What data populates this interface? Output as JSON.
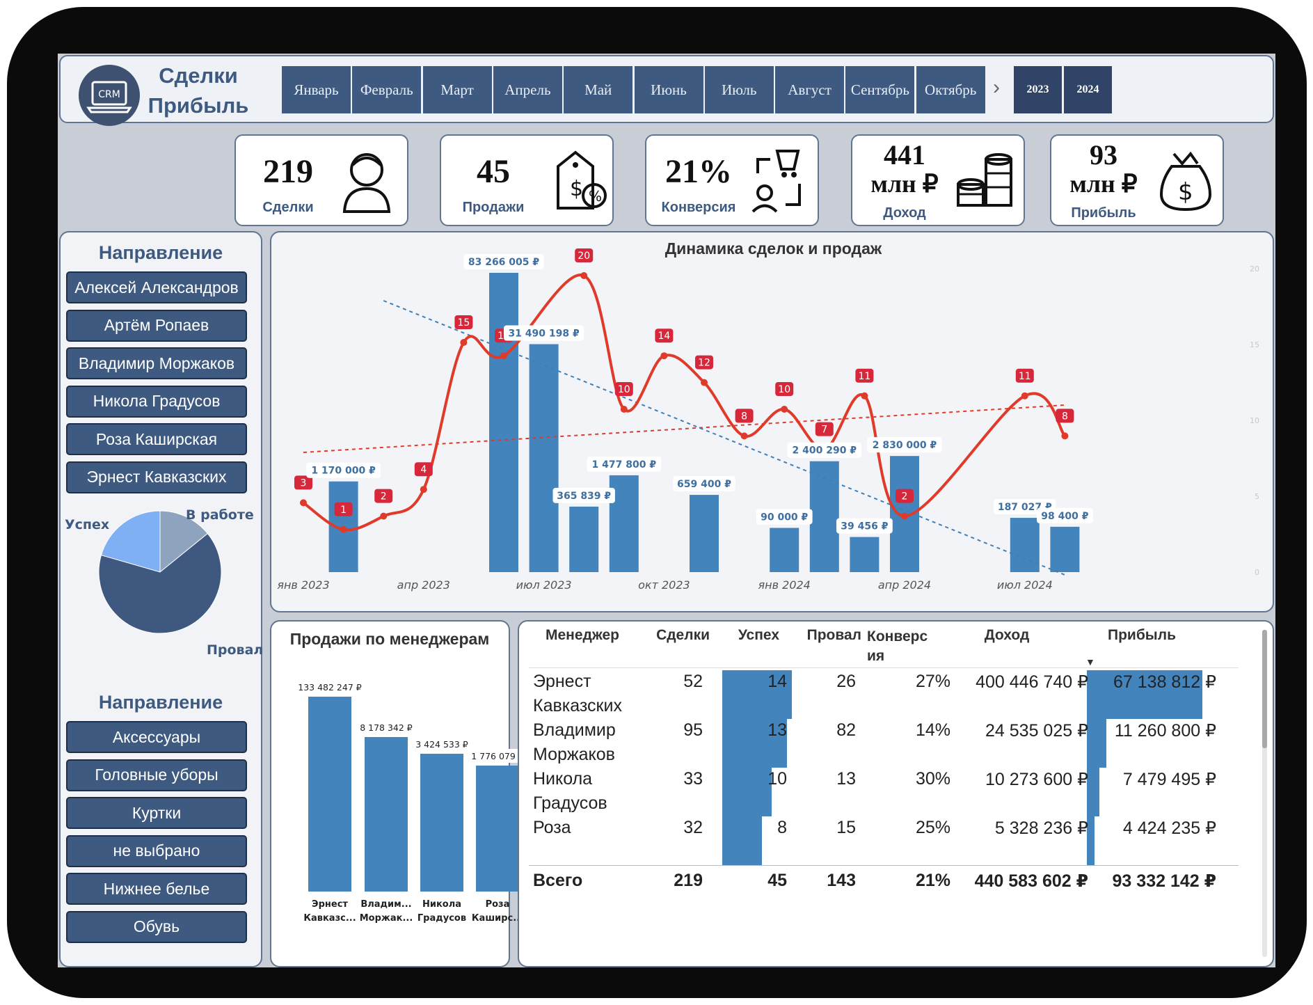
{
  "header": {
    "logo_text": "CRM",
    "title_line1": "Сделки",
    "title_line2": "Прибыль",
    "months": [
      "Январь",
      "Февраль",
      "Март",
      "Апрель",
      "Май",
      "Июнь",
      "Июль",
      "Август",
      "Сентябрь",
      "Октябрь"
    ],
    "next_glyph": "›",
    "years": [
      "2023",
      "2024"
    ]
  },
  "kpis": [
    {
      "value": "219",
      "unit": "",
      "label": "Сделки",
      "icon": "person-icon"
    },
    {
      "value": "45",
      "unit": "",
      "label": "Продажи",
      "icon": "price-tag-icon"
    },
    {
      "value": "21%",
      "unit": "",
      "label": "Конверсия",
      "icon": "cart-exchange-icon"
    },
    {
      "value": "441",
      "unit": "млн ₽",
      "label": "Доход",
      "icon": "coins-icon"
    },
    {
      "value": "93",
      "unit": "млн ₽",
      "label": "Прибыль",
      "icon": "money-bag-icon"
    }
  ],
  "sidebar": {
    "managers_title": "Направление",
    "managers": [
      "Алексей Александров",
      "Артём Ропаев",
      "Владимир Моржаков",
      "Никола Градусов",
      "Роза Каширская",
      "Эрнест Кавказских"
    ],
    "categories_title": "Направление",
    "categories": [
      "Аксессуары",
      "Головные уборы",
      "Куртки",
      "не выбрано",
      "Нижнее белье",
      "Обувь"
    ]
  },
  "pie": {
    "slices": [
      {
        "label": "Успех",
        "value": 45,
        "color": "#7fb0f4"
      },
      {
        "label": "В работе",
        "value": 31,
        "color": "#8ea3bd"
      },
      {
        "label": "Провал",
        "value": 143,
        "color": "#3f5880"
      }
    ]
  },
  "chart_data": [
    {
      "type": "bar",
      "title": "Динамика сделок и продаж",
      "x_tick_labels": [
        "янв 2023",
        "апр 2023",
        "июл 2023",
        "окт 2023",
        "янв 2024",
        "апр 2024",
        "июл 2024"
      ],
      "x": [
        "2023-01",
        "2023-02",
        "2023-03",
        "2023-04",
        "2023-05",
        "2023-06",
        "2023-07",
        "2023-08",
        "2023-09",
        "2023-10",
        "2023-11",
        "2023-12",
        "2024-01",
        "2024-02",
        "2024-03",
        "2024-04",
        "2024-05",
        "2024-06",
        "2024-07",
        "2024-08"
      ],
      "series": [
        {
          "kind": "bar",
          "values": [
            null,
            1170000,
            null,
            null,
            null,
            83266005,
            31490198,
            365839,
            1477800,
            null,
            659400,
            null,
            90000,
            2400290,
            39456,
            2830000,
            null,
            null,
            187027,
            98400
          ],
          "labels": [
            "",
            "1 170 000 ₽",
            "",
            "",
            "",
            "83 266 005 ₽",
            "31 490 198 ₽",
            "365 839 ₽",
            "1 477 800 ₽",
            "",
            "659 400 ₽",
            "",
            "90 000 ₽",
            "2 400 290 ₽",
            "39 456 ₽",
            "2 830 000 ₽",
            "",
            "",
            "187 027 ₽",
            "98 400 ₽"
          ]
        },
        {
          "kind": "line",
          "values": [
            3,
            1,
            2,
            4,
            15,
            14,
            null,
            20,
            10,
            14,
            12,
            8,
            10,
            7,
            11,
            2,
            null,
            null,
            11,
            8
          ]
        }
      ],
      "bar_color": "#4384bd",
      "line_color": "#e03a2a",
      "right_axis_ticks": [
        "0",
        "5",
        "10",
        "15",
        "20"
      ],
      "ylim": [
        0,
        20
      ]
    },
    {
      "type": "bar",
      "title": "Продажи по менеджерам",
      "categories": [
        "Эрнест Кавказс...",
        "Владим... Моржак...",
        "Никола Градусов",
        "Роза Каширс..."
      ],
      "values": [
        133482247,
        8178342,
        3424533,
        1776079
      ],
      "labels": [
        "133 482 247 ₽",
        "8 178 342 ₽",
        "3 424 533 ₽",
        "1 776 079 ₽"
      ],
      "category_lines": [
        [
          "Эрнест",
          "Кавказс..."
        ],
        [
          "Владим...",
          "Моржак..."
        ],
        [
          "Никола",
          "Градусов"
        ],
        [
          "Роза",
          "Каширс..."
        ]
      ]
    },
    {
      "type": "table",
      "columns": [
        "Менеджер",
        "Сделки",
        "Успех",
        "Провал",
        "Конверсия",
        "Доход",
        "Прибыль"
      ],
      "rows": [
        {
          "name1": "Эрнест",
          "name2": "Кавказских",
          "deals": "52",
          "success": "14",
          "fail": "26",
          "conv": "27%",
          "income": "400 446 740 ₽",
          "profit": "67 138 812 ₽",
          "success_val": 14,
          "profit_val": 67138812
        },
        {
          "name1": "Владимир",
          "name2": "Моржаков",
          "deals": "95",
          "success": "13",
          "fail": "82",
          "conv": "14%",
          "income": "24 535 025 ₽",
          "profit": "11 260 800 ₽",
          "success_val": 13,
          "profit_val": 11260800
        },
        {
          "name1": "Никола",
          "name2": "Градусов",
          "deals": "33",
          "success": "10",
          "fail": "13",
          "conv": "30%",
          "income": "10 273 600 ₽",
          "profit": "7 479 495 ₽",
          "success_val": 10,
          "profit_val": 7479495
        },
        {
          "name1": "Роза",
          "name2": "",
          "deals": "32",
          "success": "8",
          "fail": "15",
          "conv": "25%",
          "income": "5 328 236 ₽",
          "profit": "4 424 235 ₽",
          "success_val": 8,
          "profit_val": 4424235
        }
      ],
      "totals": {
        "label": "Всего",
        "deals": "219",
        "success": "45",
        "fail": "143",
        "conv": "21%",
        "income": "440 583 602 ₽",
        "profit": "93 332 142 ₽"
      }
    }
  ]
}
